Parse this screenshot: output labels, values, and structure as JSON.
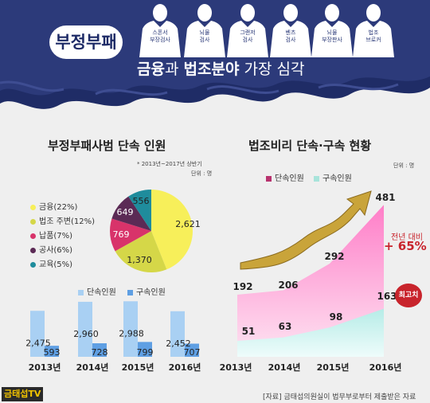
{
  "banner": {
    "badge": "부정부패",
    "headline_parts": [
      "금융",
      "과 ",
      "법조분야",
      " 가장 심각"
    ],
    "figures": [
      {
        "line1": "스폰서",
        "line2": "부장검사"
      },
      {
        "line1": "뇌물",
        "line2": "검사"
      },
      {
        "line1": "그랜저",
        "line2": "검사"
      },
      {
        "line1": "벤츠",
        "line2": "검사"
      },
      {
        "line1": "뇌물",
        "line2": "부장판사"
      },
      {
        "line1": "법조",
        "line2": "브로커"
      }
    ],
    "colors": {
      "sky": "#2c3a7a",
      "wave": "#1f2c66",
      "figure": "#ffffff"
    }
  },
  "left": {
    "title": "부정부패사범 단속 인원",
    "note1": "* 2013년~2017년 상반기",
    "note2": "단위 : 명"
  },
  "right": {
    "title": "법조비리 단속·구속 현황",
    "unit": "단위 : 명",
    "yoy_label": "전년 대비",
    "yoy_value": "+ 65%",
    "record_badge": "최고치"
  },
  "footer": {
    "source": "[자료] 금태섭의원실이 법무부로부터 제출받은 자료",
    "logo": "금태섭TV"
  },
  "chart_data": [
    {
      "type": "pie",
      "categories": [
        "금융",
        "법조 주변",
        "납품",
        "공사",
        "교육"
      ],
      "legend": [
        "금융(22%)",
        "법조 주변(12%)",
        "납품(7%)",
        "공사(6%)",
        "교육(5%)"
      ],
      "values": [
        2621,
        1370,
        769,
        649,
        556
      ],
      "value_labels": [
        "2,621",
        "1,370",
        "769",
        "649",
        "556"
      ],
      "colors": [
        "#f7ef5a",
        "#d5d748",
        "#d8336a",
        "#5b2a55",
        "#1f8c9c"
      ]
    },
    {
      "type": "bar",
      "categories": [
        "2013년",
        "2014년",
        "2015년",
        "2016년"
      ],
      "series": [
        {
          "name": "단속인원",
          "values": [
            2475,
            2960,
            2988,
            2452
          ],
          "labels": [
            "2,475",
            "2,960",
            "2,988",
            "2,452"
          ],
          "color": "#a9d0f3"
        },
        {
          "name": "구속인원",
          "values": [
            593,
            728,
            799,
            707
          ],
          "labels": [
            "593",
            "728",
            "799",
            "707"
          ],
          "color": "#5f9fe3"
        }
      ],
      "ylim": [
        0,
        3000
      ]
    },
    {
      "type": "area",
      "categories": [
        "2013년",
        "2014년",
        "2015년",
        "2016년"
      ],
      "series": [
        {
          "name": "단속인원",
          "values": [
            192,
            206,
            292,
            481
          ],
          "labels": [
            "192",
            "206",
            "292",
            "481"
          ],
          "color": "#ff9fd4"
        },
        {
          "name": "구속인원",
          "values": [
            51,
            63,
            98,
            163
          ],
          "labels": [
            "51",
            "63",
            "98",
            "163"
          ],
          "color": "#c9f1ef"
        }
      ],
      "legend_colors": [
        "#b8326e",
        "#a8e4db"
      ],
      "ylim": [
        0,
        500
      ]
    }
  ]
}
